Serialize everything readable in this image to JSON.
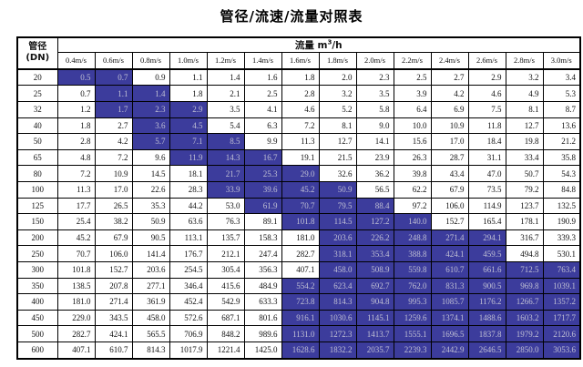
{
  "title": "管径/流速/流量对照表",
  "header": {
    "corner_line1": "管径",
    "corner_line2": "(DN)",
    "flow_prefix": "流量 m",
    "flow_sup": "3",
    "flow_suffix": "/h",
    "velocities": [
      "0.4m/s",
      "0.6m/s",
      "0.8m/s",
      "1.0m/s",
      "1.2m/s",
      "1.4m/s",
      "1.6m/s",
      "1.8m/s",
      "2.0m/s",
      "2.2m/s",
      "2.4m/s",
      "2.6m/s",
      "2.8m/s",
      "3.0m/s"
    ]
  },
  "colors": {
    "highlight_bg": "#3C3C9C",
    "highlight_text": "#C0C0D4",
    "grid": "#000000"
  },
  "rows": [
    {
      "dn": "20",
      "values": [
        "0.5",
        "0.7",
        "0.9",
        "1.1",
        "1.4",
        "1.6",
        "1.8",
        "2.0",
        "2.3",
        "2.5",
        "2.7",
        "2.9",
        "3.2",
        "3.4"
      ],
      "highlight": [
        0,
        1
      ]
    },
    {
      "dn": "25",
      "values": [
        "0.7",
        "1.1",
        "1.4",
        "1.8",
        "2.1",
        "2.5",
        "2.8",
        "3.2",
        "3.5",
        "3.9",
        "4.2",
        "4.6",
        "4.9",
        "5.3"
      ],
      "highlight": [
        1,
        2
      ]
    },
    {
      "dn": "32",
      "values": [
        "1.2",
        "1.7",
        "2.3",
        "2.9",
        "3.5",
        "4.1",
        "4.6",
        "5.2",
        "5.8",
        "6.4",
        "6.9",
        "7.5",
        "8.1",
        "8.7"
      ],
      "highlight": [
        1,
        2,
        3
      ]
    },
    {
      "dn": "40",
      "values": [
        "1.8",
        "2.7",
        "3.6",
        "4.5",
        "5.4",
        "6.3",
        "7.2",
        "8.1",
        "9.0",
        "10.0",
        "10.9",
        "11.8",
        "12.7",
        "13.6"
      ],
      "highlight": [
        2,
        3
      ]
    },
    {
      "dn": "50",
      "values": [
        "2.8",
        "4.2",
        "5.7",
        "7.1",
        "8.5",
        "9.9",
        "11.3",
        "12.7",
        "14.1",
        "15.6",
        "17.0",
        "18.4",
        "19.8",
        "21.2"
      ],
      "highlight": [
        2,
        3,
        4
      ]
    },
    {
      "dn": "65",
      "values": [
        "4.8",
        "7.2",
        "9.6",
        "11.9",
        "14.3",
        "16.7",
        "19.1",
        "21.5",
        "23.9",
        "26.3",
        "28.7",
        "31.1",
        "33.4",
        "35.8"
      ],
      "highlight": [
        3,
        4,
        5
      ]
    },
    {
      "dn": "80",
      "values": [
        "7.2",
        "10.9",
        "14.5",
        "18.1",
        "21.7",
        "25.3",
        "29.0",
        "32.6",
        "36.2",
        "39.8",
        "43.4",
        "47.0",
        "50.7",
        "54.3"
      ],
      "highlight": [
        4,
        5,
        6
      ]
    },
    {
      "dn": "100",
      "values": [
        "11.3",
        "17.0",
        "22.6",
        "28.3",
        "33.9",
        "39.6",
        "45.2",
        "50.9",
        "56.5",
        "62.2",
        "67.9",
        "73.5",
        "79.2",
        "84.8"
      ],
      "highlight": [
        4,
        5,
        6,
        7
      ]
    },
    {
      "dn": "125",
      "values": [
        "17.7",
        "26.5",
        "35.3",
        "44.2",
        "53.0",
        "61.9",
        "70.7",
        "79.5",
        "88.4",
        "97.2",
        "106.0",
        "114.9",
        "123.7",
        "132.5"
      ],
      "highlight": [
        5,
        6,
        7,
        8
      ]
    },
    {
      "dn": "150",
      "values": [
        "25.4",
        "38.2",
        "50.9",
        "63.6",
        "76.3",
        "89.1",
        "101.8",
        "114.5",
        "127.2",
        "140.0",
        "152.7",
        "165.4",
        "178.1",
        "190.9"
      ],
      "highlight": [
        6,
        7,
        8,
        9
      ]
    },
    {
      "dn": "200",
      "values": [
        "45.2",
        "67.9",
        "90.5",
        "113.1",
        "135.7",
        "158.3",
        "181.0",
        "203.6",
        "226.2",
        "248.8",
        "271.4",
        "294.1",
        "316.7",
        "339.3"
      ],
      "highlight": [
        7,
        8,
        9,
        10,
        11
      ]
    },
    {
      "dn": "250",
      "values": [
        "70.7",
        "106.0",
        "141.4",
        "176.7",
        "212.1",
        "247.4",
        "282.7",
        "318.1",
        "353.4",
        "388.8",
        "424.1",
        "459.5",
        "494.8",
        "530.1"
      ],
      "highlight": [
        7,
        8,
        9,
        10,
        11
      ]
    },
    {
      "dn": "300",
      "values": [
        "101.8",
        "152.7",
        "203.6",
        "254.5",
        "305.4",
        "356.3",
        "407.1",
        "458.0",
        "508.9",
        "559.8",
        "610.7",
        "661.6",
        "712.5",
        "763.4"
      ],
      "highlight": [
        7,
        8,
        9,
        10,
        11,
        12,
        13
      ]
    },
    {
      "dn": "350",
      "values": [
        "138.5",
        "207.8",
        "277.1",
        "346.4",
        "415.6",
        "484.9",
        "554.2",
        "623.4",
        "692.7",
        "762.0",
        "831.3",
        "900.5",
        "969.8",
        "1039.1"
      ],
      "highlight": [
        6,
        7,
        8,
        9,
        10,
        11,
        12,
        13
      ]
    },
    {
      "dn": "400",
      "values": [
        "181.0",
        "271.4",
        "361.9",
        "452.4",
        "542.9",
        "633.3",
        "723.8",
        "814.3",
        "904.8",
        "995.3",
        "1085.7",
        "1176.2",
        "1266.7",
        "1357.2"
      ],
      "highlight": [
        6,
        7,
        8,
        9,
        10,
        11,
        12,
        13
      ]
    },
    {
      "dn": "450",
      "values": [
        "229.0",
        "343.5",
        "458.0",
        "572.6",
        "687.1",
        "801.6",
        "916.1",
        "1030.6",
        "1145.1",
        "1259.6",
        "1374.1",
        "1488.6",
        "1603.2",
        "1717.7"
      ],
      "highlight": [
        6,
        7,
        8,
        9,
        10,
        11,
        12,
        13
      ]
    },
    {
      "dn": "500",
      "values": [
        "282.7",
        "424.1",
        "565.5",
        "706.9",
        "848.2",
        "989.6",
        "1131.0",
        "1272.3",
        "1413.7",
        "1555.1",
        "1696.5",
        "1837.8",
        "1979.2",
        "2120.6"
      ],
      "highlight": [
        6,
        7,
        8,
        9,
        10,
        11,
        12,
        13
      ]
    },
    {
      "dn": "600",
      "values": [
        "407.1",
        "610.7",
        "814.3",
        "1017.9",
        "1221.4",
        "1425.0",
        "1628.6",
        "1832.2",
        "2035.7",
        "2239.3",
        "2442.9",
        "2646.5",
        "2850.0",
        "3053.6"
      ],
      "highlight": [
        6,
        7,
        8,
        9,
        10,
        11,
        12,
        13
      ]
    }
  ]
}
